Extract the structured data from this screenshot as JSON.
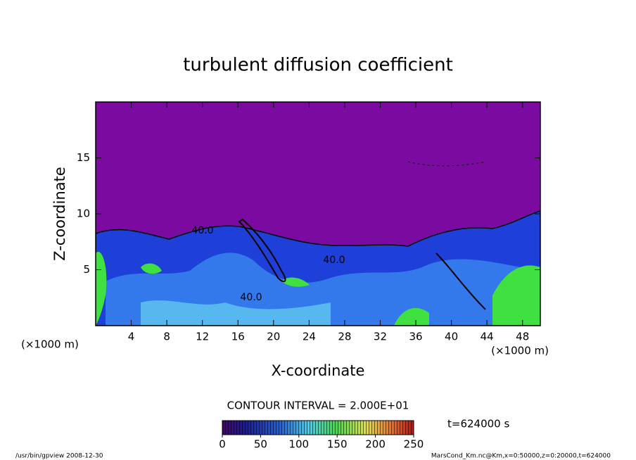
{
  "chart_data": {
    "type": "contour",
    "title": "turbulent diffusion coefficient",
    "xlabel": "X-coordinate",
    "ylabel": "Z-coordinate",
    "x_unit": "(×1000 m)",
    "xlim": [
      0,
      50
    ],
    "ylim": [
      0,
      20
    ],
    "xticks": [
      4,
      8,
      12,
      16,
      20,
      24,
      28,
      32,
      36,
      40,
      44,
      48
    ],
    "yticks": [
      5,
      10,
      15
    ],
    "contour_labels": [
      "40.0",
      "40.0",
      "40.0"
    ],
    "contour_interval_label": "CONTOUR INTERVAL = 2.000E+01",
    "colorbar": {
      "lim": [
        0,
        250
      ],
      "ticks": [
        0,
        50,
        100,
        150,
        200,
        250
      ]
    },
    "time_label": "t=624000 s",
    "footer_left": "/usr/bin/gpview   2008-12-30",
    "footer_right": "MarsCond_Km.nc@Km,x=0:50000,z=0:20000,t=624000"
  }
}
